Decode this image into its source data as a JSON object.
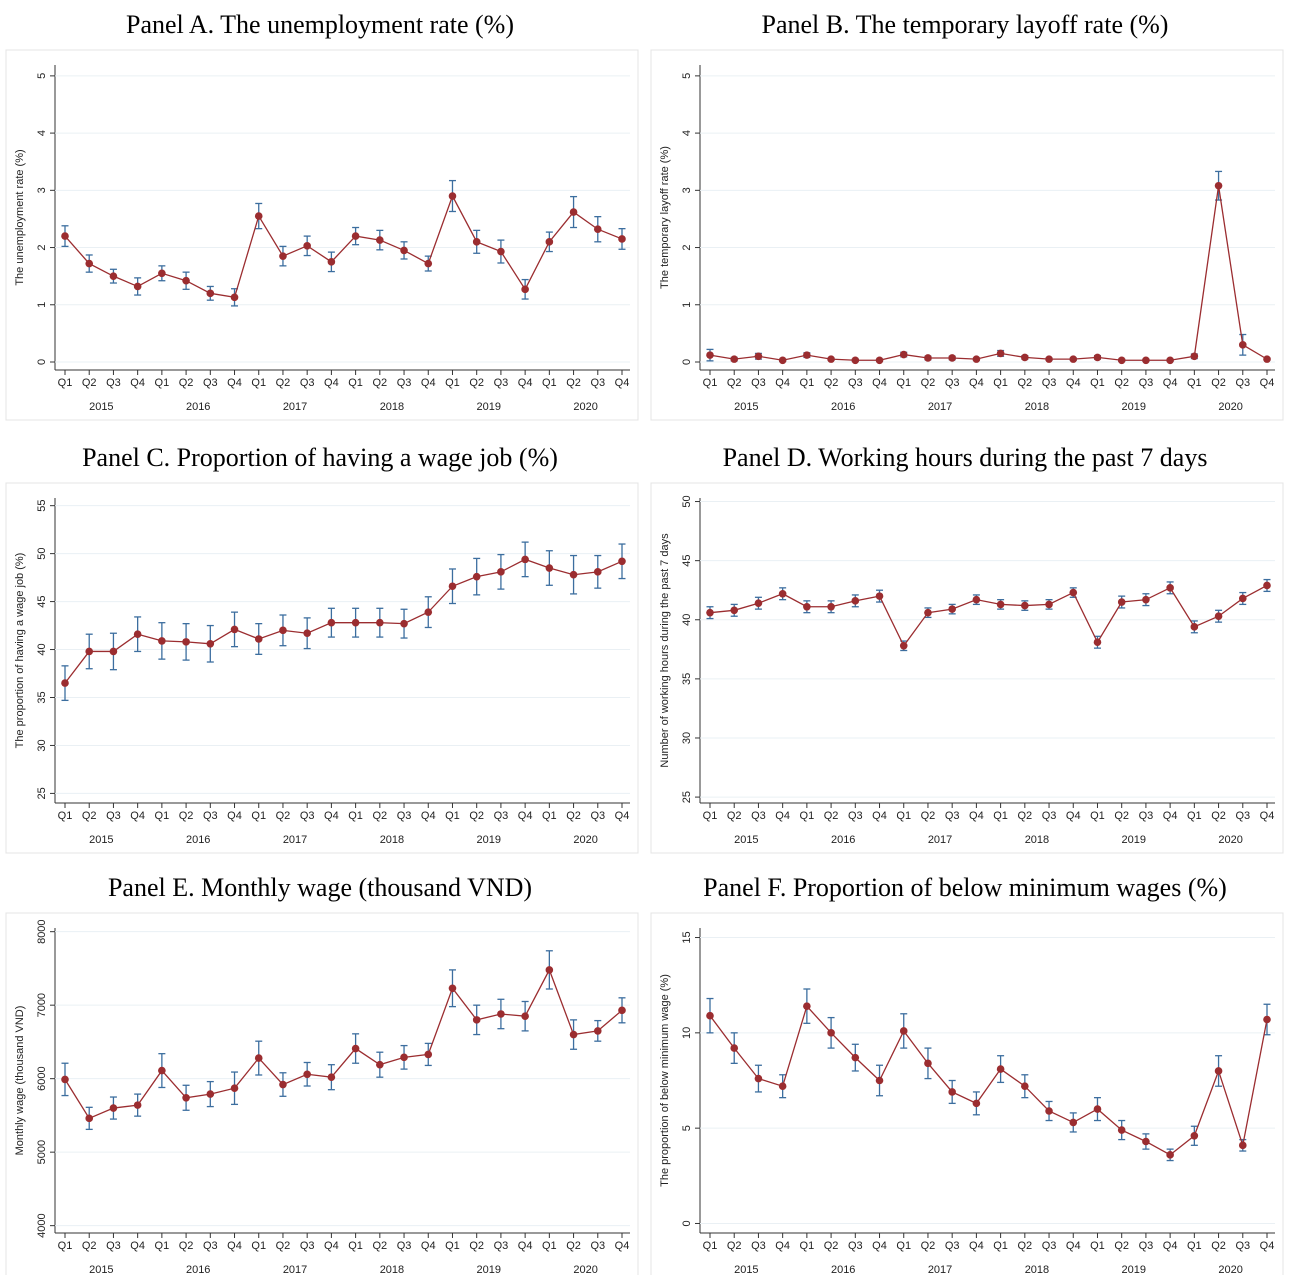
{
  "chart_data": [
    {
      "type": "line",
      "title": "Panel A. The unemployment rate (%)",
      "ylabel": "The unemployment rate (%)",
      "categories": [
        "Q1",
        "Q2",
        "Q3",
        "Q4",
        "Q1",
        "Q2",
        "Q3",
        "Q4",
        "Q1",
        "Q2",
        "Q3",
        "Q4",
        "Q1",
        "Q2",
        "Q3",
        "Q4",
        "Q1",
        "Q2",
        "Q3",
        "Q4",
        "Q1",
        "Q2",
        "Q3",
        "Q4"
      ],
      "years": [
        "2015",
        "2016",
        "2017",
        "2018",
        "2019",
        "2020"
      ],
      "values": [
        2.2,
        1.72,
        1.5,
        1.32,
        1.55,
        1.42,
        1.2,
        1.13,
        2.55,
        1.85,
        2.03,
        1.75,
        2.2,
        2.13,
        1.95,
        1.72,
        2.9,
        2.1,
        1.93,
        1.27,
        2.1,
        2.62,
        2.32,
        2.15
      ],
      "errors": [
        0.18,
        0.15,
        0.12,
        0.15,
        0.13,
        0.15,
        0.12,
        0.15,
        0.22,
        0.17,
        0.17,
        0.17,
        0.15,
        0.17,
        0.15,
        0.13,
        0.27,
        0.2,
        0.2,
        0.17,
        0.17,
        0.27,
        0.22,
        0.18
      ],
      "ylim": [
        -0.14,
        5.19
      ],
      "yticks": [
        0,
        1,
        2,
        3,
        4,
        5
      ],
      "color": "#9b2d30",
      "error_color": "#3c6e9f",
      "grid": true
    },
    {
      "type": "line",
      "title": "Panel B. The temporary layoff rate (%)",
      "ylabel": "The temporary layoff rate (%)",
      "categories": [
        "Q1",
        "Q2",
        "Q3",
        "Q4",
        "Q1",
        "Q2",
        "Q3",
        "Q4",
        "Q1",
        "Q2",
        "Q3",
        "Q4",
        "Q1",
        "Q2",
        "Q3",
        "Q4",
        "Q1",
        "Q2",
        "Q3",
        "Q4",
        "Q1",
        "Q2",
        "Q3",
        "Q4"
      ],
      "years": [
        "2015",
        "2016",
        "2017",
        "2018",
        "2019",
        "2020"
      ],
      "values": [
        0.12,
        0.05,
        0.1,
        0.03,
        0.12,
        0.05,
        0.03,
        0.03,
        0.13,
        0.07,
        0.07,
        0.05,
        0.15,
        0.08,
        0.05,
        0.05,
        0.08,
        0.03,
        0.03,
        0.03,
        0.1,
        3.08,
        0.3,
        0.05
      ],
      "errors": [
        0.1,
        0.03,
        0.05,
        0.02,
        0.04,
        0.02,
        0.02,
        0.02,
        0.04,
        0.03,
        0.03,
        0.02,
        0.05,
        0.03,
        0.02,
        0.02,
        0.03,
        0.02,
        0.02,
        0.02,
        0.04,
        0.25,
        0.18,
        0.02
      ],
      "ylim": [
        -0.14,
        5.19
      ],
      "yticks": [
        0,
        1,
        2,
        3,
        4,
        5
      ],
      "color": "#9b2d30",
      "error_color": "#3c6e9f",
      "grid": true
    },
    {
      "type": "line",
      "title": "Panel C. Proportion of having a wage job (%)",
      "ylabel": "The proportion of having a wage job (%)",
      "categories": [
        "Q1",
        "Q2",
        "Q3",
        "Q4",
        "Q1",
        "Q2",
        "Q3",
        "Q4",
        "Q1",
        "Q2",
        "Q3",
        "Q4",
        "Q1",
        "Q2",
        "Q3",
        "Q4",
        "Q1",
        "Q2",
        "Q3",
        "Q4",
        "Q1",
        "Q2",
        "Q3",
        "Q4"
      ],
      "years": [
        "2015",
        "2016",
        "2017",
        "2018",
        "2019",
        "2020"
      ],
      "values": [
        36.5,
        39.8,
        39.8,
        41.6,
        40.9,
        40.8,
        40.6,
        42.1,
        41.1,
        42.0,
        41.7,
        42.8,
        42.8,
        42.8,
        42.7,
        43.9,
        46.6,
        47.6,
        48.1,
        49.4,
        48.5,
        47.8,
        48.1,
        49.2
      ],
      "errors": [
        1.8,
        1.8,
        1.9,
        1.8,
        1.9,
        1.9,
        1.9,
        1.8,
        1.6,
        1.6,
        1.6,
        1.5,
        1.5,
        1.5,
        1.5,
        1.6,
        1.8,
        1.9,
        1.8,
        1.8,
        1.8,
        2.0,
        1.7,
        1.8
      ],
      "ylim": [
        24,
        55.8
      ],
      "yticks": [
        25,
        30,
        35,
        40,
        45,
        50,
        55
      ],
      "color": "#9b2d30",
      "error_color": "#3c6e9f",
      "grid": true
    },
    {
      "type": "line",
      "title": "Panel D. Working hours during the past 7 days",
      "ylabel": "Number of working hours during the past 7 days",
      "categories": [
        "Q1",
        "Q2",
        "Q3",
        "Q4",
        "Q1",
        "Q2",
        "Q3",
        "Q4",
        "Q1",
        "Q2",
        "Q3",
        "Q4",
        "Q1",
        "Q2",
        "Q3",
        "Q4",
        "Q1",
        "Q2",
        "Q3",
        "Q4",
        "Q1",
        "Q2",
        "Q3",
        "Q4"
      ],
      "years": [
        "2015",
        "2016",
        "2017",
        "2018",
        "2019",
        "2020"
      ],
      "values": [
        40.6,
        40.8,
        41.4,
        42.2,
        41.1,
        41.1,
        41.6,
        42.0,
        37.8,
        40.6,
        40.9,
        41.7,
        41.3,
        41.2,
        41.3,
        42.3,
        38.1,
        41.5,
        41.7,
        42.7,
        39.4,
        40.3,
        41.8,
        42.9
      ],
      "errors": [
        0.5,
        0.5,
        0.5,
        0.5,
        0.5,
        0.5,
        0.5,
        0.5,
        0.4,
        0.4,
        0.4,
        0.4,
        0.4,
        0.4,
        0.4,
        0.4,
        0.5,
        0.5,
        0.5,
        0.5,
        0.5,
        0.5,
        0.5,
        0.5
      ],
      "ylim": [
        24.5,
        50.3
      ],
      "yticks": [
        25,
        30,
        35,
        40,
        45,
        50
      ],
      "color": "#9b2d30",
      "error_color": "#3c6e9f",
      "grid": true
    },
    {
      "type": "line",
      "title": "Panel E. Monthly wage (thousand VND)",
      "ylabel": "Monthly wage (thousand VND)",
      "categories": [
        "Q1",
        "Q2",
        "Q3",
        "Q4",
        "Q1",
        "Q2",
        "Q3",
        "Q4",
        "Q1",
        "Q2",
        "Q3",
        "Q4",
        "Q1",
        "Q2",
        "Q3",
        "Q4",
        "Q1",
        "Q2",
        "Q3",
        "Q4",
        "Q1",
        "Q2",
        "Q3",
        "Q4"
      ],
      "years": [
        "2015",
        "2016",
        "2017",
        "2018",
        "2019",
        "2020"
      ],
      "values": [
        5990,
        5460,
        5600,
        5640,
        6110,
        5740,
        5790,
        5870,
        6280,
        5920,
        6060,
        6020,
        6410,
        6190,
        6290,
        6330,
        7230,
        6800,
        6880,
        6850,
        7480,
        6600,
        6650,
        6930
      ],
      "errors": [
        220,
        150,
        150,
        150,
        230,
        170,
        170,
        220,
        230,
        160,
        160,
        170,
        200,
        170,
        160,
        150,
        250,
        200,
        200,
        200,
        260,
        200,
        140,
        170
      ],
      "ylim": [
        3900,
        8050
      ],
      "yticks": [
        4000,
        5000,
        6000,
        7000,
        8000
      ],
      "color": "#9b2d30",
      "error_color": "#3c6e9f",
      "grid": true
    },
    {
      "type": "line",
      "title": "Panel F. Proportion of below minimum wages (%)",
      "ylabel": "The proportion of below minimum wage (%)",
      "categories": [
        "Q1",
        "Q2",
        "Q3",
        "Q4",
        "Q1",
        "Q2",
        "Q3",
        "Q4",
        "Q1",
        "Q2",
        "Q3",
        "Q4",
        "Q1",
        "Q2",
        "Q3",
        "Q4",
        "Q1",
        "Q2",
        "Q3",
        "Q4",
        "Q1",
        "Q2",
        "Q3",
        "Q4"
      ],
      "years": [
        "2015",
        "2016",
        "2017",
        "2018",
        "2019",
        "2020"
      ],
      "values": [
        10.9,
        9.2,
        7.6,
        7.2,
        11.4,
        10.0,
        8.7,
        7.5,
        10.1,
        8.4,
        6.9,
        6.3,
        8.1,
        7.2,
        5.9,
        5.3,
        6.0,
        4.9,
        4.3,
        3.6,
        4.6,
        8.0,
        4.1,
        10.7
      ],
      "errors": [
        0.9,
        0.8,
        0.7,
        0.6,
        0.9,
        0.8,
        0.7,
        0.8,
        0.9,
        0.8,
        0.6,
        0.6,
        0.7,
        0.6,
        0.5,
        0.5,
        0.6,
        0.5,
        0.4,
        0.3,
        0.5,
        0.8,
        0.3,
        0.8
      ],
      "ylim": [
        -0.5,
        15.5
      ],
      "yticks": [
        0,
        5,
        10,
        15
      ],
      "color": "#9b2d30",
      "error_color": "#3c6e9f",
      "grid": true
    }
  ]
}
